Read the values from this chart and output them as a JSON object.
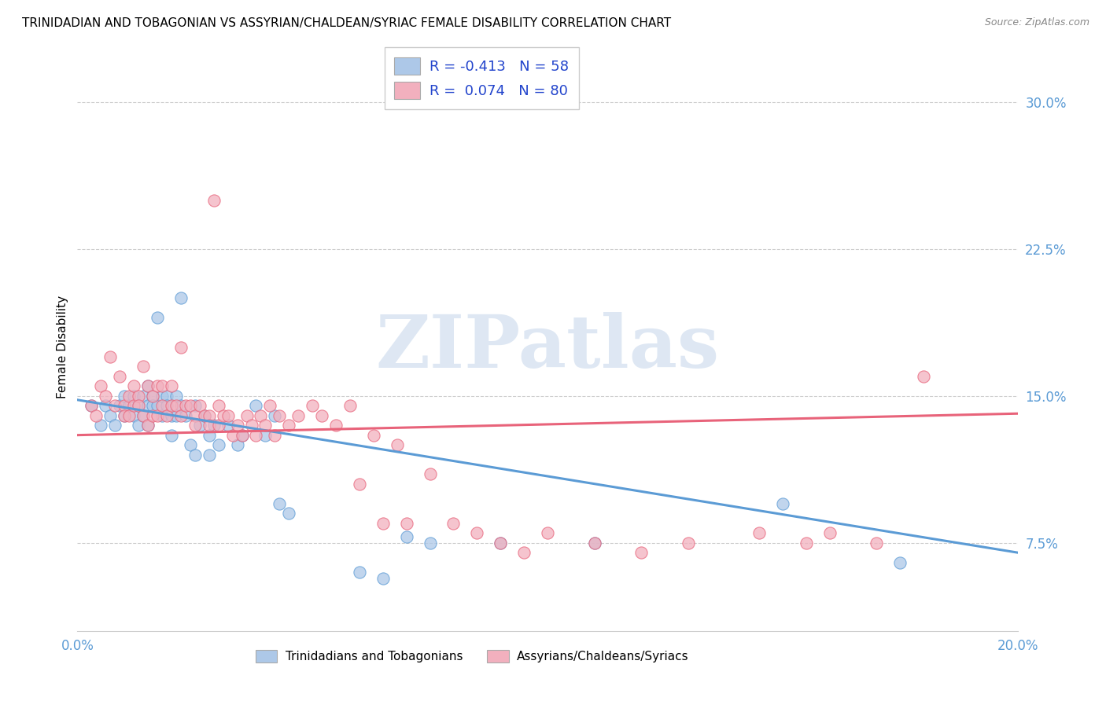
{
  "title": "TRINIDADIAN AND TOBAGONIAN VS ASSYRIAN/CHALDEAN/SYRIAC FEMALE DISABILITY CORRELATION CHART",
  "source": "Source: ZipAtlas.com",
  "ylabel": "Female Disability",
  "ytick_labels": [
    "7.5%",
    "15.0%",
    "22.5%",
    "30.0%"
  ],
  "ytick_values": [
    0.075,
    0.15,
    0.225,
    0.3
  ],
  "xlim": [
    0.0,
    0.2
  ],
  "ylim": [
    0.03,
    0.32
  ],
  "legend_entries": [
    {
      "label_r": "R = ",
      "label_rv": "-0.413",
      "label_n": "   N = ",
      "label_nv": "58"
    },
    {
      "label_r": "R =  ",
      "label_rv": "0.074",
      "label_n": "   N = ",
      "label_nv": "80"
    }
  ],
  "legend_labels_bottom": [
    "Trinidadians and Tobagonians",
    "Assyrians/Chaldeans/Syriacs"
  ],
  "blue_scatter_x": [
    0.003,
    0.005,
    0.006,
    0.007,
    0.008,
    0.009,
    0.01,
    0.01,
    0.011,
    0.012,
    0.012,
    0.013,
    0.013,
    0.014,
    0.014,
    0.015,
    0.015,
    0.015,
    0.016,
    0.016,
    0.017,
    0.017,
    0.018,
    0.018,
    0.019,
    0.019,
    0.02,
    0.02,
    0.021,
    0.021,
    0.022,
    0.022,
    0.023,
    0.024,
    0.025,
    0.025,
    0.026,
    0.027,
    0.028,
    0.028,
    0.029,
    0.03,
    0.032,
    0.034,
    0.035,
    0.038,
    0.04,
    0.042,
    0.043,
    0.045,
    0.06,
    0.065,
    0.07,
    0.075,
    0.09,
    0.11,
    0.15,
    0.175
  ],
  "blue_scatter_y": [
    0.145,
    0.135,
    0.145,
    0.14,
    0.135,
    0.145,
    0.15,
    0.14,
    0.145,
    0.15,
    0.14,
    0.145,
    0.135,
    0.15,
    0.14,
    0.155,
    0.145,
    0.135,
    0.15,
    0.145,
    0.19,
    0.145,
    0.15,
    0.14,
    0.15,
    0.145,
    0.14,
    0.13,
    0.15,
    0.14,
    0.2,
    0.145,
    0.14,
    0.125,
    0.145,
    0.12,
    0.135,
    0.14,
    0.13,
    0.12,
    0.135,
    0.125,
    0.135,
    0.125,
    0.13,
    0.145,
    0.13,
    0.14,
    0.095,
    0.09,
    0.06,
    0.057,
    0.078,
    0.075,
    0.075,
    0.075,
    0.095,
    0.065
  ],
  "pink_scatter_x": [
    0.003,
    0.004,
    0.005,
    0.006,
    0.007,
    0.008,
    0.009,
    0.01,
    0.01,
    0.011,
    0.011,
    0.012,
    0.012,
    0.013,
    0.013,
    0.014,
    0.014,
    0.015,
    0.015,
    0.016,
    0.016,
    0.017,
    0.017,
    0.018,
    0.018,
    0.019,
    0.02,
    0.02,
    0.021,
    0.022,
    0.022,
    0.023,
    0.024,
    0.025,
    0.025,
    0.026,
    0.027,
    0.028,
    0.028,
    0.029,
    0.03,
    0.03,
    0.031,
    0.032,
    0.033,
    0.034,
    0.035,
    0.036,
    0.037,
    0.038,
    0.039,
    0.04,
    0.041,
    0.042,
    0.043,
    0.045,
    0.047,
    0.05,
    0.052,
    0.055,
    0.058,
    0.06,
    0.063,
    0.065,
    0.068,
    0.07,
    0.075,
    0.08,
    0.085,
    0.09,
    0.095,
    0.1,
    0.11,
    0.12,
    0.13,
    0.145,
    0.155,
    0.16,
    0.17,
    0.18
  ],
  "pink_scatter_y": [
    0.145,
    0.14,
    0.155,
    0.15,
    0.17,
    0.145,
    0.16,
    0.145,
    0.14,
    0.15,
    0.14,
    0.155,
    0.145,
    0.15,
    0.145,
    0.165,
    0.14,
    0.155,
    0.135,
    0.15,
    0.14,
    0.155,
    0.14,
    0.155,
    0.145,
    0.14,
    0.155,
    0.145,
    0.145,
    0.175,
    0.14,
    0.145,
    0.145,
    0.14,
    0.135,
    0.145,
    0.14,
    0.14,
    0.135,
    0.25,
    0.145,
    0.135,
    0.14,
    0.14,
    0.13,
    0.135,
    0.13,
    0.14,
    0.135,
    0.13,
    0.14,
    0.135,
    0.145,
    0.13,
    0.14,
    0.135,
    0.14,
    0.145,
    0.14,
    0.135,
    0.145,
    0.105,
    0.13,
    0.085,
    0.125,
    0.085,
    0.11,
    0.085,
    0.08,
    0.075,
    0.07,
    0.08,
    0.075,
    0.07,
    0.075,
    0.08,
    0.075,
    0.08,
    0.075,
    0.16
  ],
  "blue_line_x": [
    0.0,
    0.2
  ],
  "blue_line_y": [
    0.148,
    0.07
  ],
  "pink_line_x": [
    0.0,
    0.2
  ],
  "pink_line_y": [
    0.13,
    0.141
  ],
  "blue_color": "#5b9bd5",
  "pink_color": "#e8637a",
  "blue_fill": "#adc8e8",
  "pink_fill": "#f2b0be",
  "watermark_text": "ZIPatlas",
  "grid_color": "#c8c8c8",
  "background_color": "#ffffff",
  "title_fontsize": 11,
  "axis_label_color": "#5b9bd5"
}
